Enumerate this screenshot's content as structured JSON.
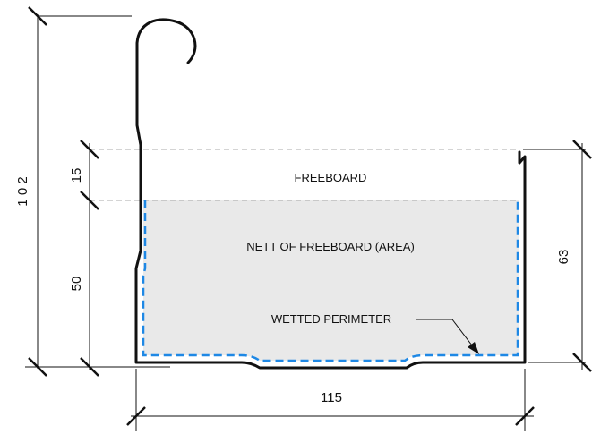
{
  "labels": {
    "freeboard": "FREEBOARD",
    "nett_area": "NETT OF FREEBOARD (AREA)",
    "wetted_perimeter": "WETTED PERIMETER"
  },
  "dimensions": {
    "total_height": "1 0 2",
    "freeboard_height": "15",
    "nett_height": "50",
    "right_height": "63",
    "width": "115"
  },
  "colors": {
    "outline": "#111111",
    "area_fill": "#e9e9e9",
    "wetted_perimeter": "#1e88e5",
    "freeboard_line": "#a8a8a8"
  }
}
